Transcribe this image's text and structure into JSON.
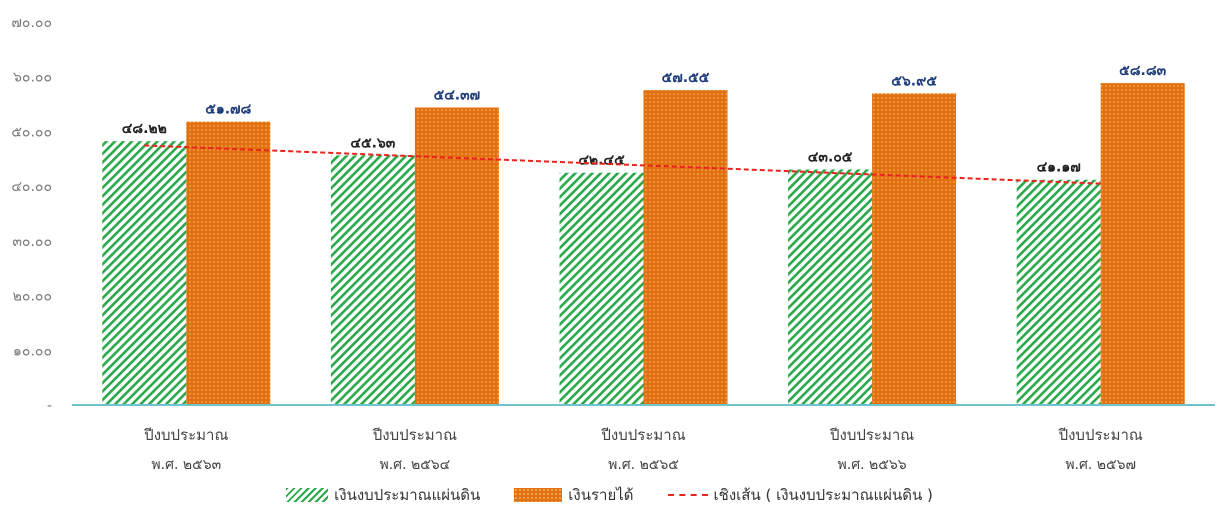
{
  "chart_data": {
    "type": "bar",
    "categories": [
      [
        "ปีงบประมาณ",
        "พ.ศ. ๒๕๖๓"
      ],
      [
        "ปีงบประมาณ",
        "พ.ศ. ๒๕๖๔"
      ],
      [
        "ปีงบประมาณ",
        "พ.ศ. ๒๕๖๕"
      ],
      [
        "ปีงบประมาณ",
        "พ.ศ. ๒๕๖๖"
      ],
      [
        "ปีงบประมาณ",
        "พ.ศ. ๒๕๖๗"
      ]
    ],
    "series": [
      {
        "name": "เงินงบประมาณแผ่นดิน",
        "values": [
          48.22,
          45.63,
          42.45,
          43.05,
          41.17
        ],
        "labels": [
          "๔๘.๒๒",
          "๔๕.๖๓",
          "๔๒.๔๕",
          "๔๓.๐๕",
          "๔๑.๑๗"
        ],
        "color": "#2aa84a",
        "pattern": "diagonal-hatch"
      },
      {
        "name": "เงินรายได้",
        "values": [
          51.78,
          54.37,
          57.55,
          56.95,
          58.83
        ],
        "labels": [
          "๕๑.๗๘",
          "๕๔.๓๗",
          "๕๗.๕๕",
          "๕๖.๙๕",
          "๕๘.๘๓"
        ],
        "color": "#e2700e",
        "pattern": "dotted"
      }
    ],
    "trendline": {
      "name": "เชิงเส้น ( เงินงบประมาณแผ่นดิน )",
      "series_index": 0,
      "color": "#e8241e",
      "style": "dashed"
    },
    "y_ticks": [
      {
        "value": 0,
        "label": "-"
      },
      {
        "value": 10,
        "label": "๑๐.๐๐"
      },
      {
        "value": 20,
        "label": "๒๐.๐๐"
      },
      {
        "value": 30,
        "label": "๓๐.๐๐"
      },
      {
        "value": 40,
        "label": "๔๐.๐๐"
      },
      {
        "value": 50,
        "label": "๕๐.๐๐"
      },
      {
        "value": 60,
        "label": "๖๐.๐๐"
      },
      {
        "value": 70,
        "label": "๗๐.๐๐"
      }
    ],
    "ylim": [
      0,
      70
    ],
    "title": "",
    "xlabel": "",
    "ylabel": "",
    "grid": false,
    "legend_position": "bottom-center",
    "axis_color": "#6fc3cf",
    "label_colors": {
      "series_0": "#222222",
      "series_1": "#1f3d7a"
    }
  }
}
